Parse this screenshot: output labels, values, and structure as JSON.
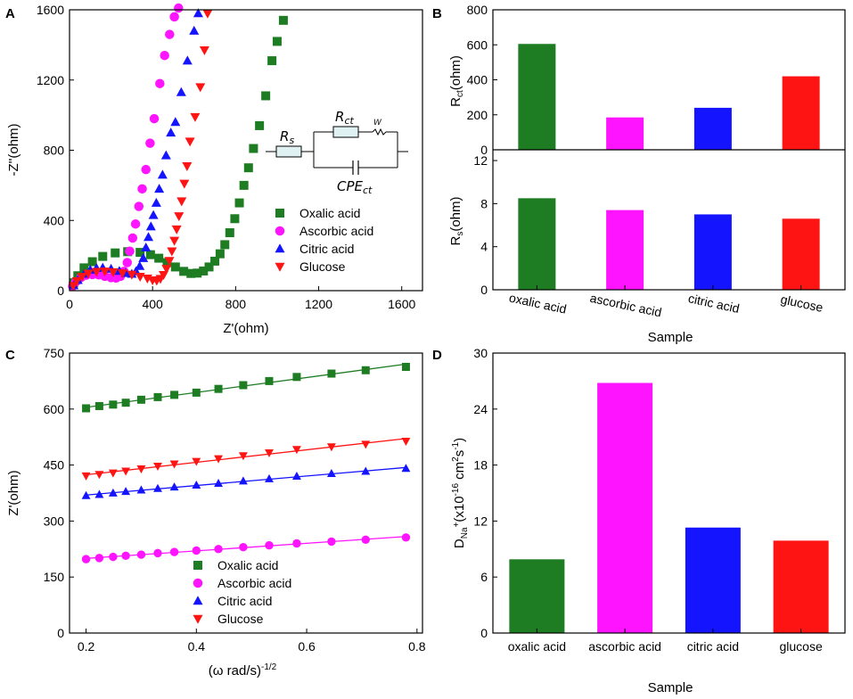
{
  "figure": {
    "colors": {
      "oxalic": "#1e7d22",
      "ascorbic": "#ff14ff",
      "citric": "#1414ff",
      "glucose": "#ff1414"
    }
  },
  "chart_data": [
    {
      "panel": "A",
      "type": "scatter",
      "title": "",
      "xlabel": "Z'(ohm)",
      "ylabel": "-Z''(ohm)",
      "xlim": [
        0,
        1700
      ],
      "ylim": [
        0,
        1600
      ],
      "xticks": [
        0,
        400,
        800,
        1200,
        1600
      ],
      "yticks": [
        0,
        400,
        800,
        1200,
        1600
      ],
      "legend_position": "center-right",
      "circuit_labels": [
        "R_s",
        "R_ct",
        "W",
        "CPE_ct"
      ],
      "series": [
        {
          "name": "Oxalic acid",
          "key": "oxalic",
          "marker": "square",
          "points": [
            [
              20,
              45
            ],
            [
              40,
              85
            ],
            [
              70,
              130
            ],
            [
              110,
              165
            ],
            [
              160,
              195
            ],
            [
              220,
              215
            ],
            [
              280,
              222
            ],
            [
              340,
              218
            ],
            [
              390,
              205
            ],
            [
              430,
              185
            ],
            [
              470,
              160
            ],
            [
              510,
              135
            ],
            [
              550,
              110
            ],
            [
              585,
              98
            ],
            [
              615,
              100
            ],
            [
              645,
              112
            ],
            [
              672,
              135
            ],
            [
              700,
              168
            ],
            [
              725,
              210
            ],
            [
              748,
              262
            ],
            [
              772,
              330
            ],
            [
              796,
              410
            ],
            [
              818,
              500
            ],
            [
              840,
              600
            ],
            [
              862,
              700
            ],
            [
              886,
              810
            ],
            [
              915,
              940
            ],
            [
              945,
              1110
            ],
            [
              975,
              1310
            ],
            [
              1000,
              1420
            ],
            [
              1030,
              1540
            ]
          ]
        },
        {
          "name": "Ascorbic acid",
          "key": "ascorbic",
          "marker": "circle",
          "points": [
            [
              15,
              25
            ],
            [
              30,
              50
            ],
            [
              55,
              75
            ],
            [
              80,
              88
            ],
            [
              110,
              92
            ],
            [
              140,
              90
            ],
            [
              170,
              82
            ],
            [
              200,
              74
            ],
            [
              225,
              72
            ],
            [
              245,
              82
            ],
            [
              262,
              110
            ],
            [
              278,
              160
            ],
            [
              290,
              225
            ],
            [
              304,
              300
            ],
            [
              318,
              380
            ],
            [
              334,
              480
            ],
            [
              350,
              580
            ],
            [
              368,
              690
            ],
            [
              388,
              840
            ],
            [
              408,
              980
            ],
            [
              435,
              1180
            ],
            [
              458,
              1340
            ],
            [
              482,
              1460
            ],
            [
              505,
              1560
            ],
            [
              525,
              1610
            ]
          ]
        },
        {
          "name": "Citric acid",
          "key": "citric",
          "marker": "triangle-up",
          "points": [
            [
              20,
              30
            ],
            [
              40,
              60
            ],
            [
              70,
              95
            ],
            [
              100,
              118
            ],
            [
              130,
              128
            ],
            [
              160,
              130
            ],
            [
              200,
              124
            ],
            [
              240,
              112
            ],
            [
              270,
              100
            ],
            [
              300,
              95
            ],
            [
              320,
              110
            ],
            [
              338,
              140
            ],
            [
              355,
              185
            ],
            [
              368,
              245
            ],
            [
              380,
              305
            ],
            [
              392,
              365
            ],
            [
              404,
              430
            ],
            [
              418,
              500
            ],
            [
              432,
              580
            ],
            [
              448,
              660
            ],
            [
              465,
              770
            ],
            [
              488,
              900
            ],
            [
              510,
              960
            ],
            [
              538,
              1130
            ],
            [
              568,
              1310
            ],
            [
              600,
              1480
            ],
            [
              620,
              1580
            ]
          ]
        },
        {
          "name": "Glucose",
          "key": "glucose",
          "marker": "triangle-down",
          "points": [
            [
              18,
              28
            ],
            [
              35,
              55
            ],
            [
              60,
              80
            ],
            [
              90,
              98
            ],
            [
              130,
              108
            ],
            [
              170,
              110
            ],
            [
              210,
              106
            ],
            [
              255,
              100
            ],
            [
              300,
              92
            ],
            [
              340,
              80
            ],
            [
              375,
              70
            ],
            [
              400,
              60
            ],
            [
              420,
              58
            ],
            [
              438,
              68
            ],
            [
              453,
              90
            ],
            [
              467,
              125
            ],
            [
              481,
              170
            ],
            [
              493,
              225
            ],
            [
              505,
              285
            ],
            [
              516,
              350
            ],
            [
              527,
              425
            ],
            [
              540,
              510
            ],
            [
              553,
              610
            ],
            [
              566,
              710
            ],
            [
              580,
              850
            ],
            [
              605,
              990
            ],
            [
              630,
              1160
            ],
            [
              650,
              1370
            ],
            [
              665,
              1580
            ]
          ]
        }
      ]
    },
    {
      "panel": "B",
      "type": "bar",
      "categories": [
        "oxalic acid",
        "ascorbic acid",
        "citric acid",
        "glucose"
      ],
      "xlabel": "Sample",
      "top": {
        "ylabel": "Rct(ohm)",
        "ylim": [
          0,
          800
        ],
        "yticks": [
          0,
          200,
          400,
          600,
          800
        ],
        "values": [
          605,
          185,
          240,
          420
        ]
      },
      "bottom": {
        "ylabel": "Rs(ohm)",
        "ylim": [
          0,
          13
        ],
        "yticks": [
          0,
          4,
          8,
          12
        ],
        "values": [
          8.5,
          7.4,
          7.0,
          6.6
        ]
      }
    },
    {
      "panel": "C",
      "type": "scatter",
      "xlabel": "(ω rad/s)^-1/2",
      "ylabel": "Z'(ohm)",
      "xlim": [
        0.17,
        0.81
      ],
      "ylim": [
        0,
        750
      ],
      "xticks": [
        0.2,
        0.4,
        0.6,
        0.8
      ],
      "yticks": [
        0,
        150,
        300,
        450,
        600,
        750
      ],
      "fit_lines": true,
      "legend_position": "bottom-center",
      "x": [
        0.2,
        0.224,
        0.249,
        0.272,
        0.3,
        0.33,
        0.36,
        0.4,
        0.44,
        0.485,
        0.532,
        0.582,
        0.645,
        0.707,
        0.78
      ],
      "series": [
        {
          "name": "Oxalic acid",
          "key": "oxalic",
          "marker": "square",
          "values": [
            602,
            608,
            612,
            617,
            625,
            632,
            638,
            644,
            654,
            664,
            675,
            686,
            695,
            704,
            713
          ]
        },
        {
          "name": "Ascorbic acid",
          "key": "ascorbic",
          "marker": "circle",
          "values": [
            198,
            201,
            204,
            207,
            210,
            214,
            217,
            221,
            225,
            230,
            235,
            240,
            245,
            250,
            256
          ]
        },
        {
          "name": "Citric acid",
          "key": "citric",
          "marker": "triangle-up",
          "values": [
            368,
            371,
            375,
            379,
            383,
            387,
            391,
            396,
            401,
            407,
            413,
            420,
            427,
            433,
            441
          ]
        },
        {
          "name": "Glucose",
          "key": "glucose",
          "marker": "triangle-down",
          "values": [
            421,
            425,
            429,
            434,
            440,
            447,
            453,
            460,
            467,
            475,
            483,
            492,
            499,
            506,
            514
          ]
        }
      ]
    },
    {
      "panel": "D",
      "type": "bar",
      "categories": [
        "oxalic acid",
        "ascorbic acid",
        "citric acid",
        "glucose"
      ],
      "values": [
        7.9,
        26.8,
        11.3,
        9.9
      ],
      "xlabel": "Sample",
      "ylabel": "D_Na+(x10^-16 cm^2 s^-1)",
      "ylim": [
        0,
        30
      ],
      "yticks": [
        0,
        6,
        12,
        18,
        24,
        30
      ]
    }
  ]
}
